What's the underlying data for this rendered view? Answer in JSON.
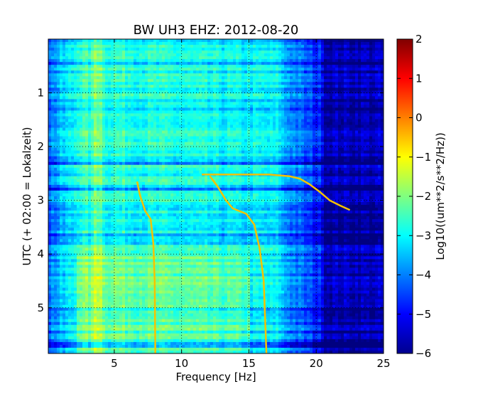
{
  "chart_data": {
    "type": "heatmap",
    "title": "BW UH3 EHZ: 2012-08-20",
    "xlabel": "Frequency [Hz]",
    "ylabel": "UTC (+ 02:00 = Lokalzeit)",
    "xlim": [
      0.1,
      25
    ],
    "ylim": [
      5.85,
      0.0
    ],
    "xticks": [
      5,
      10,
      15,
      20,
      25
    ],
    "xtick_labels": [
      "5",
      "10",
      "15",
      "20",
      "25"
    ],
    "yticks": [
      1,
      2,
      3,
      4,
      5
    ],
    "ytick_labels": [
      "1",
      "2",
      "3",
      "4",
      "5"
    ],
    "grid": true,
    "colorbar": {
      "label": "Log10((um**2/s**2/Hz))",
      "range": [
        -6,
        2
      ],
      "ticks": [
        2,
        1,
        0,
        -1,
        -2,
        -3,
        -4,
        -5,
        -6
      ],
      "tick_labels": [
        "2",
        "1",
        "0",
        "−1",
        "−2",
        "−3",
        "−4",
        "−5",
        "−6"
      ],
      "colormap": "jet"
    },
    "tremor_lines": [
      {
        "points": [
          [
            6.7,
            2.65
          ],
          [
            6.9,
            2.9
          ],
          [
            7.3,
            3.2
          ],
          [
            7.7,
            3.35
          ],
          [
            7.9,
            3.8
          ],
          [
            8.0,
            4.5
          ],
          [
            8.05,
            5.85
          ]
        ]
      },
      {
        "points": [
          [
            12.1,
            2.55
          ],
          [
            12.7,
            2.75
          ],
          [
            13.3,
            3.0
          ],
          [
            13.8,
            3.15
          ],
          [
            14.8,
            3.25
          ],
          [
            15.4,
            3.45
          ],
          [
            15.8,
            3.9
          ],
          [
            16.1,
            4.5
          ],
          [
            16.3,
            5.85
          ]
        ]
      },
      {
        "points": [
          [
            11.5,
            2.52
          ],
          [
            14.0,
            2.52
          ],
          [
            16.5,
            2.52
          ],
          [
            18.0,
            2.55
          ],
          [
            18.8,
            2.6
          ],
          [
            19.5,
            2.7
          ],
          [
            20.3,
            2.85
          ],
          [
            21.0,
            3.0
          ],
          [
            21.8,
            3.1
          ],
          [
            22.5,
            3.18
          ]
        ]
      }
    ]
  }
}
